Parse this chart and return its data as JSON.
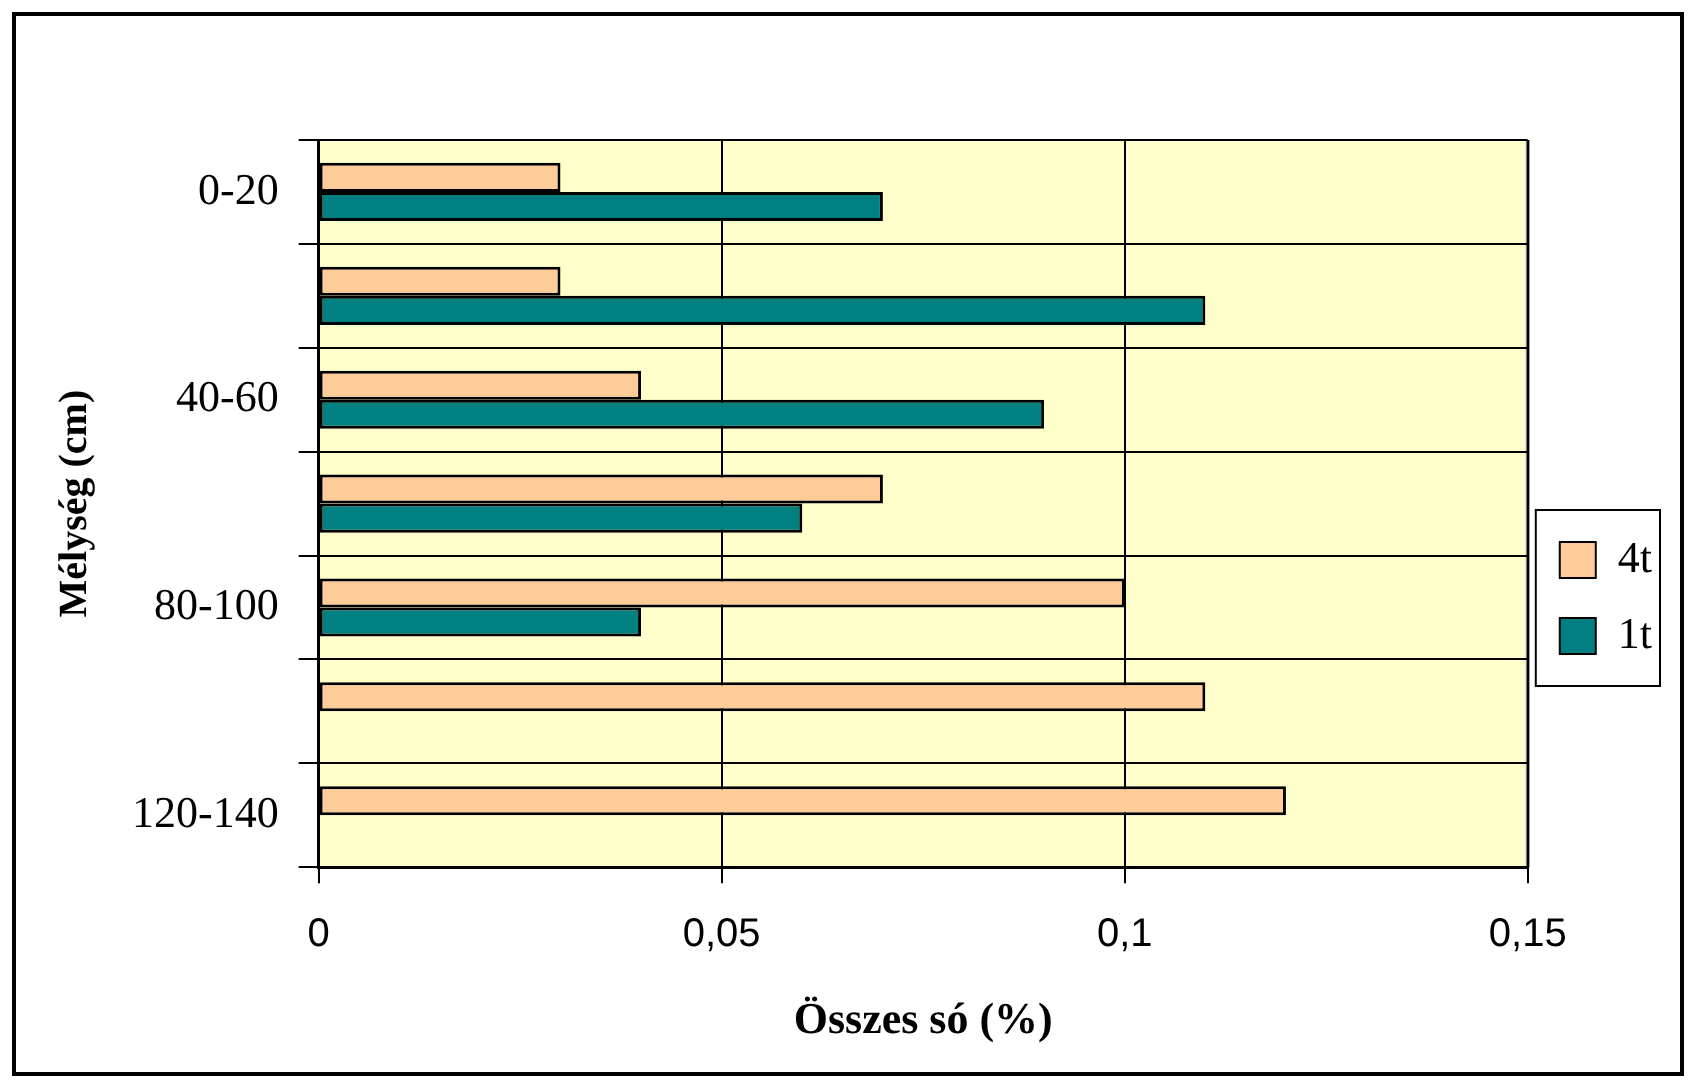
{
  "chart_data": {
    "type": "bar",
    "orientation": "horizontal",
    "xlabel": "Összes só (%)",
    "ylabel": "Mélység (cm)",
    "categories": [
      "0-20",
      null,
      "40-60",
      null,
      "80-100",
      null,
      "120-140"
    ],
    "series": [
      {
        "name": "4t",
        "color": "#ffcc99",
        "values": [
          0.03,
          0.03,
          0.04,
          0.07,
          0.1,
          0.11,
          0.12
        ]
      },
      {
        "name": "1t",
        "color": "#008080",
        "values": [
          0.07,
          0.11,
          0.09,
          0.06,
          0.04,
          null,
          null
        ]
      }
    ],
    "xlim": [
      0,
      0.15
    ],
    "xticks": [
      0,
      {
        "value": 0.05,
        "label": "0,05"
      },
      {
        "value": 0.1,
        "label": "0,1"
      },
      {
        "value": 0.15,
        "label": "0,15"
      }
    ],
    "grid": true,
    "legend": "right"
  }
}
